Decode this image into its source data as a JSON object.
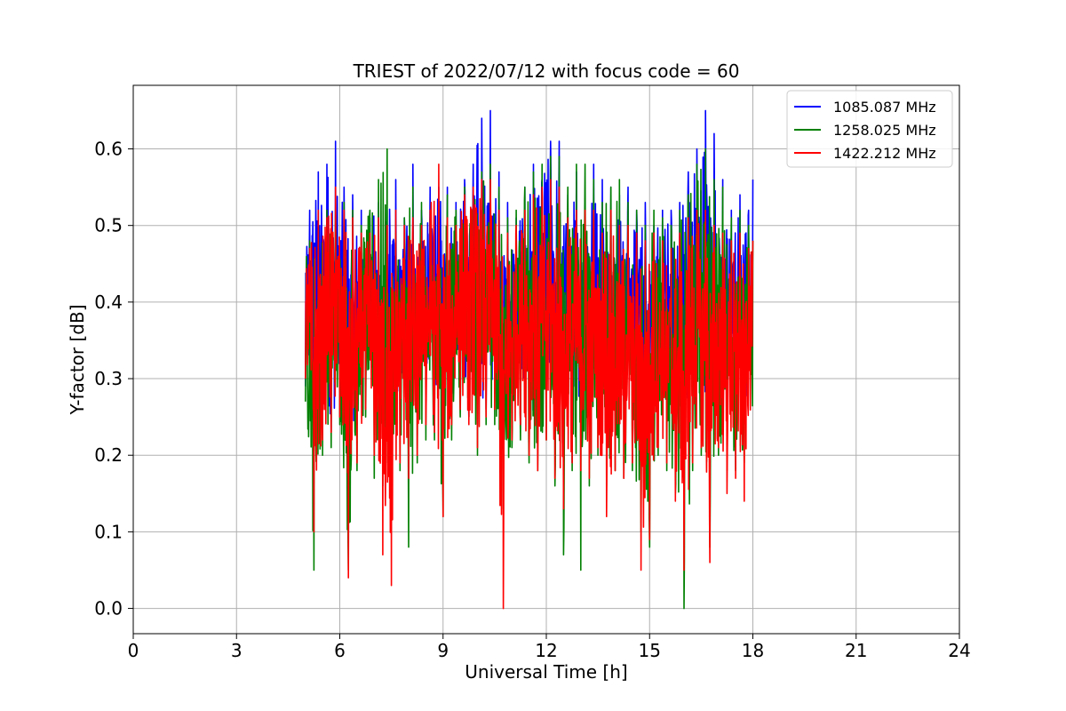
{
  "chart_data": {
    "type": "line",
    "title": "TRIEST of 2022/07/12 with focus code = 60",
    "xlabel": "Universal Time [h]",
    "ylabel": "Y-factor [dB]",
    "xlim": [
      0,
      24
    ],
    "ylim": [
      -0.033,
      0.683
    ],
    "xticks": [
      0,
      3,
      6,
      9,
      12,
      15,
      18,
      21,
      24
    ],
    "yticks": [
      0.0,
      0.1,
      0.2,
      0.3,
      0.4,
      0.5,
      0.6
    ],
    "grid": true,
    "legend_position": "top-right",
    "colors": {
      "series1": "#0000ff",
      "series2": "#008000",
      "series3": "#ff0000"
    },
    "series": [
      {
        "name": "1085.087 MHz",
        "color": "#0000ff",
        "x": [
          5.0,
          5.25,
          5.5,
          5.75,
          6.0,
          6.25,
          6.5,
          6.75,
          7.0,
          7.25,
          7.5,
          7.75,
          8.0,
          8.25,
          8.5,
          8.75,
          9.0,
          9.25,
          9.5,
          9.75,
          10.0,
          10.25,
          10.5,
          10.75,
          11.0,
          11.25,
          11.5,
          11.75,
          12.0,
          12.25,
          12.5,
          12.75,
          13.0,
          13.25,
          13.5,
          13.75,
          14.0,
          14.25,
          14.5,
          14.75,
          15.0,
          15.25,
          15.5,
          15.75,
          16.0,
          16.25,
          16.5,
          16.75,
          17.0,
          17.25,
          17.5,
          17.75,
          18.0
        ],
        "y_max": [
          0.52,
          0.57,
          0.58,
          0.61,
          0.55,
          0.54,
          0.52,
          0.51,
          0.53,
          0.52,
          0.56,
          0.51,
          0.58,
          0.52,
          0.55,
          0.55,
          0.55,
          0.53,
          0.56,
          0.58,
          0.64,
          0.65,
          0.57,
          0.53,
          0.51,
          0.55,
          0.58,
          0.56,
          0.61,
          0.61,
          0.54,
          0.57,
          0.51,
          0.58,
          0.56,
          0.55,
          0.54,
          0.55,
          0.52,
          0.53,
          0.5,
          0.52,
          0.52,
          0.53,
          0.57,
          0.6,
          0.65,
          0.62,
          0.56,
          0.52,
          0.54,
          0.52,
          0.56
        ],
        "y_min": [
          0.29,
          0.25,
          0.26,
          0.23,
          0.25,
          0.21,
          0.24,
          0.29,
          0.27,
          0.25,
          0.27,
          0.24,
          0.25,
          0.26,
          0.3,
          0.27,
          0.27,
          0.26,
          0.28,
          0.25,
          0.24,
          0.26,
          0.28,
          0.24,
          0.28,
          0.24,
          0.23,
          0.25,
          0.25,
          0.28,
          0.27,
          0.19,
          0.28,
          0.29,
          0.26,
          0.25,
          0.25,
          0.27,
          0.26,
          0.27,
          0.28,
          0.26,
          0.29,
          0.26,
          0.26,
          0.25,
          0.24,
          0.27,
          0.26,
          0.25,
          0.25,
          0.24,
          0.23
        ]
      },
      {
        "name": "1258.025 MHz",
        "color": "#008000",
        "x": [
          5.0,
          5.25,
          5.5,
          5.75,
          6.0,
          6.25,
          6.5,
          6.75,
          7.0,
          7.25,
          7.5,
          7.75,
          8.0,
          8.25,
          8.5,
          8.75,
          9.0,
          9.25,
          9.5,
          9.75,
          10.0,
          10.25,
          10.5,
          10.75,
          11.0,
          11.25,
          11.5,
          11.75,
          12.0,
          12.25,
          12.5,
          12.75,
          13.0,
          13.25,
          13.5,
          13.75,
          14.0,
          14.25,
          14.5,
          14.75,
          15.0,
          15.25,
          15.5,
          15.75,
          16.0,
          16.25,
          16.5,
          16.75,
          17.0,
          17.25,
          17.5,
          17.75,
          18.0
        ],
        "y_max": [
          0.48,
          0.5,
          0.52,
          0.52,
          0.53,
          0.52,
          0.5,
          0.52,
          0.56,
          0.6,
          0.49,
          0.51,
          0.55,
          0.53,
          0.51,
          0.52,
          0.54,
          0.52,
          0.55,
          0.54,
          0.57,
          0.58,
          0.55,
          0.51,
          0.52,
          0.55,
          0.57,
          0.58,
          0.59,
          0.59,
          0.55,
          0.58,
          0.58,
          0.56,
          0.53,
          0.55,
          0.56,
          0.53,
          0.52,
          0.5,
          0.52,
          0.51,
          0.5,
          0.52,
          0.54,
          0.58,
          0.6,
          0.56,
          0.55,
          0.51,
          0.52,
          0.5,
          0.48
        ],
        "y_min": [
          0.27,
          0.05,
          0.2,
          0.21,
          0.24,
          0.05,
          0.18,
          0.25,
          0.17,
          0.16,
          0.14,
          0.18,
          0.08,
          0.19,
          0.22,
          0.22,
          0.12,
          0.22,
          0.25,
          0.25,
          0.2,
          0.24,
          0.24,
          0.13,
          0.21,
          0.22,
          0.19,
          0.18,
          0.22,
          0.16,
          0.07,
          0.18,
          0.05,
          0.16,
          0.2,
          0.16,
          0.18,
          0.17,
          0.18,
          0.1,
          0.08,
          0.2,
          0.18,
          0.15,
          0.0,
          0.18,
          0.2,
          0.08,
          0.2,
          0.18,
          0.18,
          0.19,
          0.24
        ]
      },
      {
        "name": "1422.212 MHz",
        "color": "#ff0000",
        "x": [
          5.0,
          5.25,
          5.5,
          5.75,
          6.0,
          6.25,
          6.5,
          6.75,
          7.0,
          7.25,
          7.5,
          7.75,
          8.0,
          8.25,
          8.5,
          8.75,
          9.0,
          9.25,
          9.5,
          9.75,
          10.0,
          10.25,
          10.5,
          10.75,
          11.0,
          11.25,
          11.5,
          11.75,
          12.0,
          12.25,
          12.5,
          12.75,
          13.0,
          13.25,
          13.5,
          13.75,
          14.0,
          14.25,
          14.5,
          14.75,
          15.0,
          15.25,
          15.5,
          15.75,
          16.0,
          16.25,
          16.5,
          16.75,
          17.0,
          17.25,
          17.5,
          17.75,
          18.0
        ],
        "y_max": [
          0.47,
          0.52,
          0.51,
          0.55,
          0.52,
          0.51,
          0.49,
          0.49,
          0.51,
          0.5,
          0.52,
          0.5,
          0.51,
          0.5,
          0.52,
          0.58,
          0.51,
          0.5,
          0.54,
          0.55,
          0.56,
          0.56,
          0.52,
          0.49,
          0.5,
          0.52,
          0.54,
          0.55,
          0.56,
          0.55,
          0.51,
          0.52,
          0.52,
          0.52,
          0.49,
          0.52,
          0.5,
          0.5,
          0.49,
          0.48,
          0.49,
          0.48,
          0.47,
          0.49,
          0.51,
          0.52,
          0.52,
          0.5,
          0.49,
          0.48,
          0.49,
          0.47,
          0.48
        ],
        "y_min": [
          0.3,
          0.1,
          0.22,
          0.23,
          0.25,
          0.04,
          0.19,
          0.26,
          0.2,
          0.07,
          0.03,
          0.19,
          0.17,
          0.2,
          0.24,
          0.23,
          0.12,
          0.24,
          0.26,
          0.24,
          0.21,
          0.25,
          0.26,
          0.0,
          0.22,
          0.24,
          0.2,
          0.18,
          0.22,
          0.17,
          0.13,
          0.19,
          0.18,
          0.17,
          0.21,
          0.12,
          0.18,
          0.17,
          0.19,
          0.05,
          0.09,
          0.21,
          0.19,
          0.14,
          0.05,
          0.19,
          0.21,
          0.06,
          0.21,
          0.15,
          0.17,
          0.14,
          0.27
        ]
      }
    ]
  }
}
